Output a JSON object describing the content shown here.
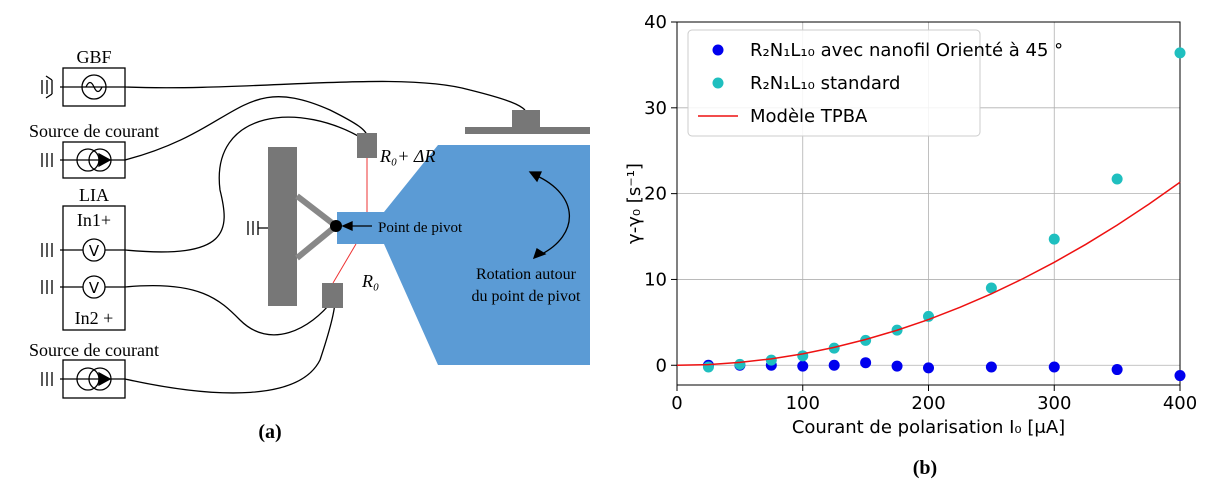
{
  "diagram": {
    "gbf": "GBF",
    "source_1": "Source de courant",
    "lia": "LIA",
    "in1": "In1+",
    "v1": "V",
    "v2": "V",
    "in2": "In2 +",
    "source_2": "Source de courant",
    "r_top": "R₀+ ΔR",
    "pivot": "Point de pivot",
    "r_bottom": "R₀",
    "rotation_1": "Rotation  autour",
    "rotation_2": "du point de pivot",
    "caption": "(a)"
  },
  "chart_caption": "(b)",
  "chart_data": {
    "type": "scatter",
    "xlabel": "Courant de polarisation I₀ [μA]",
    "ylabel": "γ-γ₀ [s⁻¹]",
    "xlim": [
      0,
      400
    ],
    "ylim": [
      -2.3,
      40
    ],
    "xticks": [
      0,
      100,
      200,
      300,
      400
    ],
    "yticks": [
      0,
      10,
      20,
      30,
      40
    ],
    "grid": true,
    "legend": "upper left",
    "series": [
      {
        "name": "R₂N₁L₁₀ avec nanofil Orienté à 45 °",
        "color": "#0000ee",
        "style": "markers",
        "x": [
          25,
          50,
          75,
          100,
          125,
          150,
          175,
          200,
          250,
          300,
          350,
          400
        ],
        "values": [
          0.0,
          0.0,
          0.0,
          -0.1,
          0.0,
          0.3,
          -0.1,
          -0.3,
          -0.2,
          -0.2,
          -0.5,
          -1.2
        ]
      },
      {
        "name": "R₂N₁L₁₀ standard",
        "color": "#1fbfbf",
        "style": "markers",
        "x": [
          25,
          50,
          75,
          100,
          125,
          150,
          175,
          200,
          250,
          300,
          350,
          400
        ],
        "values": [
          -0.2,
          0.1,
          0.6,
          1.1,
          2.0,
          2.9,
          4.1,
          5.7,
          9.0,
          14.7,
          21.7,
          36.4
        ]
      },
      {
        "name": "Modèle TPBA",
        "color": "#ee1111",
        "style": "line",
        "x": [
          0,
          25,
          50,
          75,
          100,
          125,
          150,
          175,
          200,
          225,
          250,
          275,
          300,
          325,
          350,
          375,
          400
        ],
        "values": [
          0,
          0.08,
          0.33,
          0.75,
          1.33,
          2.08,
          3.0,
          4.08,
          5.33,
          6.75,
          8.33,
          10.08,
          12.0,
          14.08,
          16.33,
          18.75,
          21.33
        ]
      }
    ]
  }
}
